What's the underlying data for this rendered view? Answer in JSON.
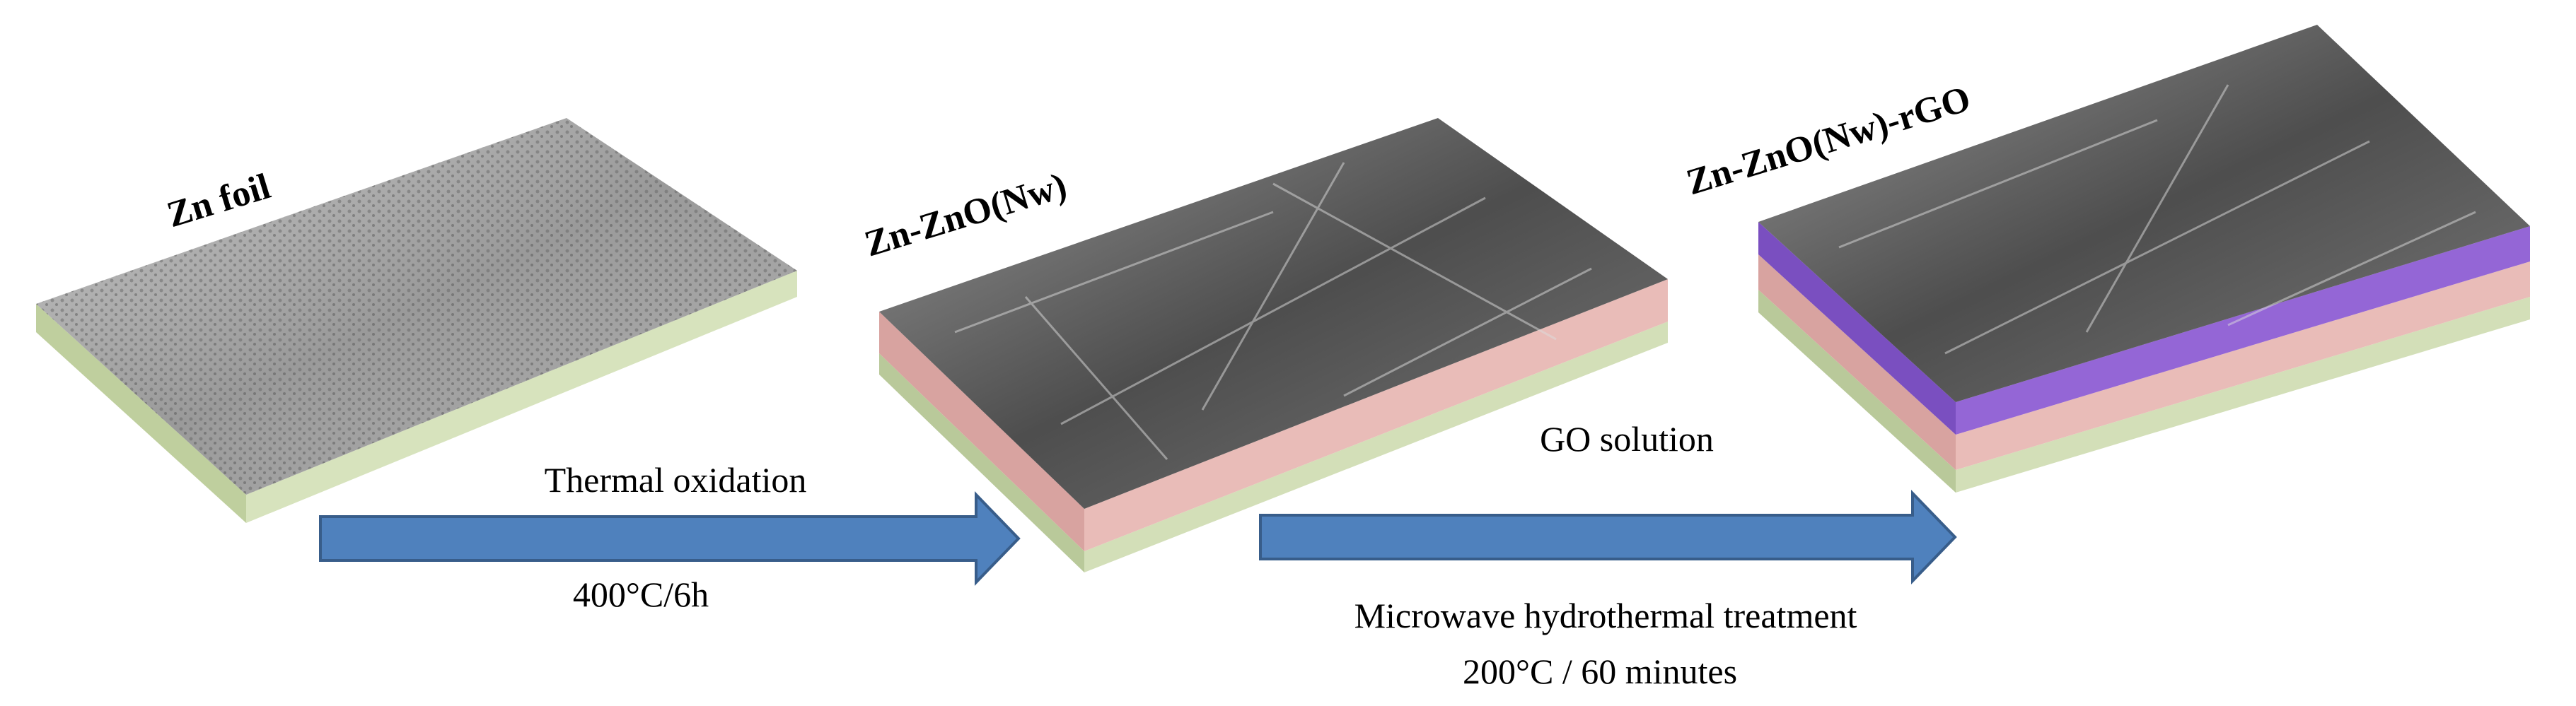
{
  "stages": [
    {
      "label": "Zn foil"
    },
    {
      "label": "Zn-ZnO(Nw)"
    },
    {
      "label": "Zn-ZnO(Nw)-rGO"
    }
  ],
  "steps": [
    {
      "above": "Thermal oxidation",
      "below": "400°C/6h"
    },
    {
      "above": "GO solution",
      "below": "Microwave hydrothermal treatment",
      "below2": "200°C / 60 minutes"
    }
  ]
}
